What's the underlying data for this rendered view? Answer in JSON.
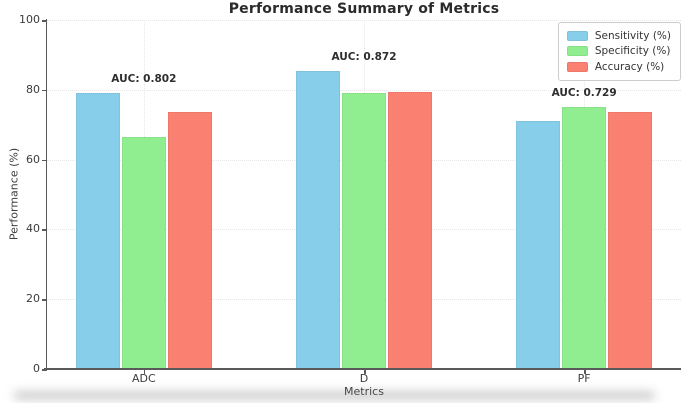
{
  "chart_data": {
    "type": "bar",
    "title": "Performance Summary of Metrics",
    "xlabel": "Metrics",
    "ylabel": "Performance (%)",
    "categories": [
      "ADC",
      "D",
      "PF"
    ],
    "series": [
      {
        "name": "Sensitivity (%)",
        "color": "#87CEEB",
        "values": [
          79,
          85.5,
          71
        ]
      },
      {
        "name": "Specificity (%)",
        "color": "#90EE90",
        "values": [
          66.5,
          79,
          75
        ]
      },
      {
        "name": "Accuracy (%)",
        "color": "#FA8072",
        "values": [
          73.5,
          79.5,
          73.5
        ]
      }
    ],
    "annotations": [
      {
        "category": "ADC",
        "label": "AUC: 0.802"
      },
      {
        "category": "D",
        "label": "AUC: 0.872"
      },
      {
        "category": "PF",
        "label": "AUC: 0.729"
      }
    ],
    "ylim": [
      0,
      100
    ],
    "yticks": [
      0,
      20,
      40,
      60,
      80,
      100
    ],
    "grid": true,
    "legend_position": "upper right",
    "layout": {
      "xlim": [
        -0.44,
        2.44
      ],
      "bar_width": 0.2,
      "offsets": [
        -0.21,
        0,
        0.21
      ],
      "annotation_gap": 2
    }
  },
  "colors": {
    "axis": "#5a5a5a",
    "grid": "#e7e7e7",
    "title_text": "#2b2b2b",
    "tick_text": "#3c3c3c",
    "annotation_text": "#2e2e2e",
    "legend_border": "#cccccc"
  }
}
